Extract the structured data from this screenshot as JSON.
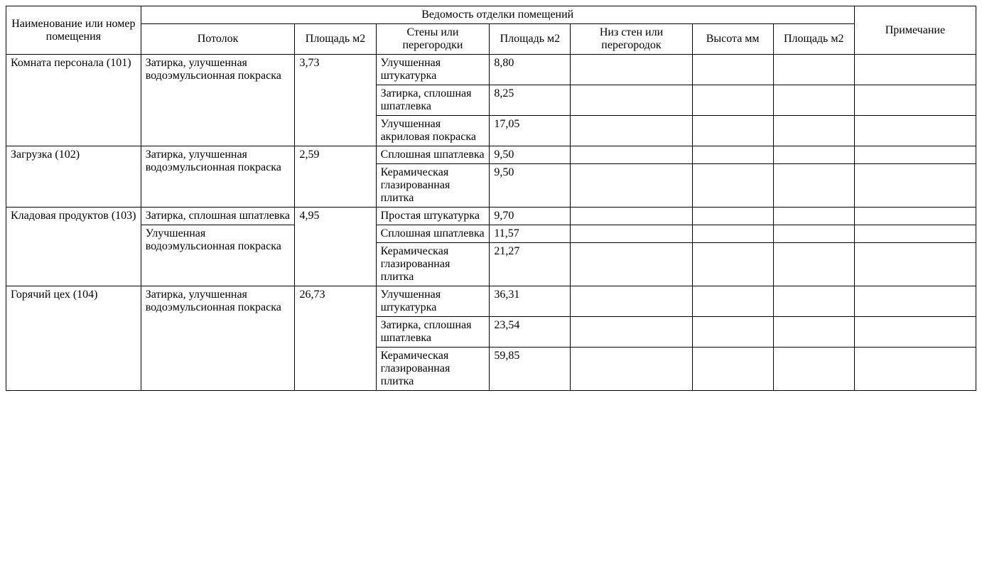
{
  "table": {
    "font_family": "Times New Roman",
    "font_size_pt": 12,
    "border_color": "#000000",
    "background_color": "#ffffff",
    "text_color": "#000000",
    "columns": [
      {
        "key": "name",
        "width_pct": 13.3
      },
      {
        "key": "ceil",
        "width_pct": 15.2
      },
      {
        "key": "area1",
        "width_pct": 8.0
      },
      {
        "key": "walls",
        "width_pct": 11.2
      },
      {
        "key": "area2",
        "width_pct": 8.0
      },
      {
        "key": "low",
        "width_pct": 12.0
      },
      {
        "key": "height",
        "width_pct": 8.0
      },
      {
        "key": "area3",
        "width_pct": 8.0
      },
      {
        "key": "note",
        "width_pct": 12.0
      }
    ],
    "headers": {
      "room_name": "Наименование или номер помещения",
      "group": "Ведомость отделки помещений",
      "ceiling": "Потолок",
      "area_m2_1": "Площадь м2",
      "walls": "Стены или перегородки",
      "area_m2_2": "Площадь м2",
      "lower_walls": "Низ стен или перегородок",
      "height_mm": "Высота мм",
      "area_m2_3": "Площадь м2",
      "note": "Примечание"
    },
    "rooms": [
      {
        "name": "Комната персонала (101)",
        "ceiling_blocks": [
          {
            "text": "Затирка, улучшенная водоэмульсионная покраска",
            "rowspan": 3
          }
        ],
        "area_ceiling": "3,73",
        "walls": [
          {
            "text": "Улучшенная штукатурка",
            "area": "8,80",
            "low": "",
            "height": "",
            "area3": "",
            "note": ""
          },
          {
            "text": "Затирка, сплошная шпатлевка",
            "area": "8,25",
            "low": "",
            "height": "",
            "area3": "",
            "note": ""
          },
          {
            "text": "Улучшенная акриловая покраска",
            "area": "17,05",
            "low": "",
            "height": "",
            "area3": "",
            "note": ""
          }
        ]
      },
      {
        "name": "Загрузка (102)",
        "ceiling_blocks": [
          {
            "text": "Затирка, улучшенная водоэмульсионная покраска",
            "rowspan": 2
          }
        ],
        "area_ceiling": "2,59",
        "walls": [
          {
            "text": "Сплошная шпатлевка",
            "area": "9,50",
            "low": "",
            "height": "",
            "area3": "",
            "note": ""
          },
          {
            "text": "Керамическая глазированная плитка",
            "area": "9,50",
            "low": "",
            "height": "",
            "area3": "",
            "note": ""
          }
        ]
      },
      {
        "name": "Кладовая продуктов (103)",
        "ceiling_blocks": [
          {
            "text": "Затирка, сплошная шпатлевка",
            "rowspan": 1
          },
          {
            "text": "Улучшенная водоэмульсионная покраска",
            "rowspan": 2
          }
        ],
        "area_ceiling": "4,95",
        "walls": [
          {
            "text": "Простая штукатурка",
            "area": "9,70",
            "low": "",
            "height": "",
            "area3": "",
            "note": ""
          },
          {
            "text": "Сплошная шпатлевка",
            "area": "11,57",
            "low": "",
            "height": "",
            "area3": "",
            "note": ""
          },
          {
            "text": "Керамическая глазированная плитка",
            "area": "21,27",
            "low": "",
            "height": "",
            "area3": "",
            "note": ""
          }
        ]
      },
      {
        "name": "Горячий цех (104)",
        "ceiling_blocks": [
          {
            "text": "Затирка, улучшенная водоэмульсионная покраска",
            "rowspan": 3
          }
        ],
        "area_ceiling": "26,73",
        "walls": [
          {
            "text": "Улучшенная штукатурка",
            "area": "36,31",
            "low": "",
            "height": "",
            "area3": "",
            "note": ""
          },
          {
            "text": "Затирка, сплошная шпатлевка",
            "area": "23,54",
            "low": "",
            "height": "",
            "area3": "",
            "note": ""
          },
          {
            "text": "Керамическая глазированная плитка",
            "area": "59,85",
            "low": "",
            "height": "",
            "area3": "",
            "note": ""
          }
        ]
      }
    ]
  }
}
